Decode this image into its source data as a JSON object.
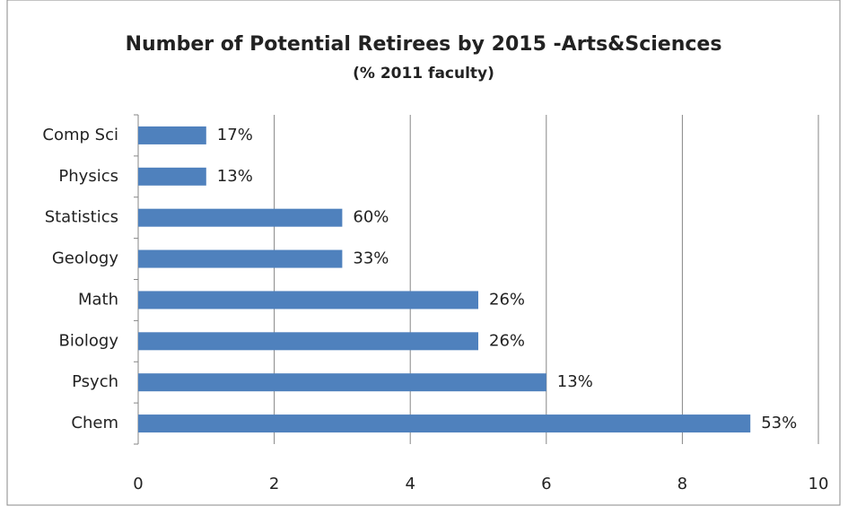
{
  "chart_data": {
    "type": "bar",
    "orientation": "horizontal",
    "title": "Number of Potential Retirees by 2015 -Arts&Sciences",
    "subtitle": "(% 2011 faculty)",
    "categories": [
      "Chem",
      "Psych",
      "Biology",
      "Math",
      "Geology",
      "Statistics",
      "Physics",
      "Comp Sci"
    ],
    "values": [
      9,
      6,
      5,
      5,
      3,
      3,
      1,
      1
    ],
    "labels": [
      "53%",
      "13%",
      "26%",
      "26%",
      "33%",
      "60%",
      "13%",
      "17%"
    ],
    "color": "#4f81bd",
    "xlim": [
      0,
      10
    ],
    "xticks": [
      0,
      2,
      4,
      6,
      8,
      10
    ],
    "grid": true
  }
}
